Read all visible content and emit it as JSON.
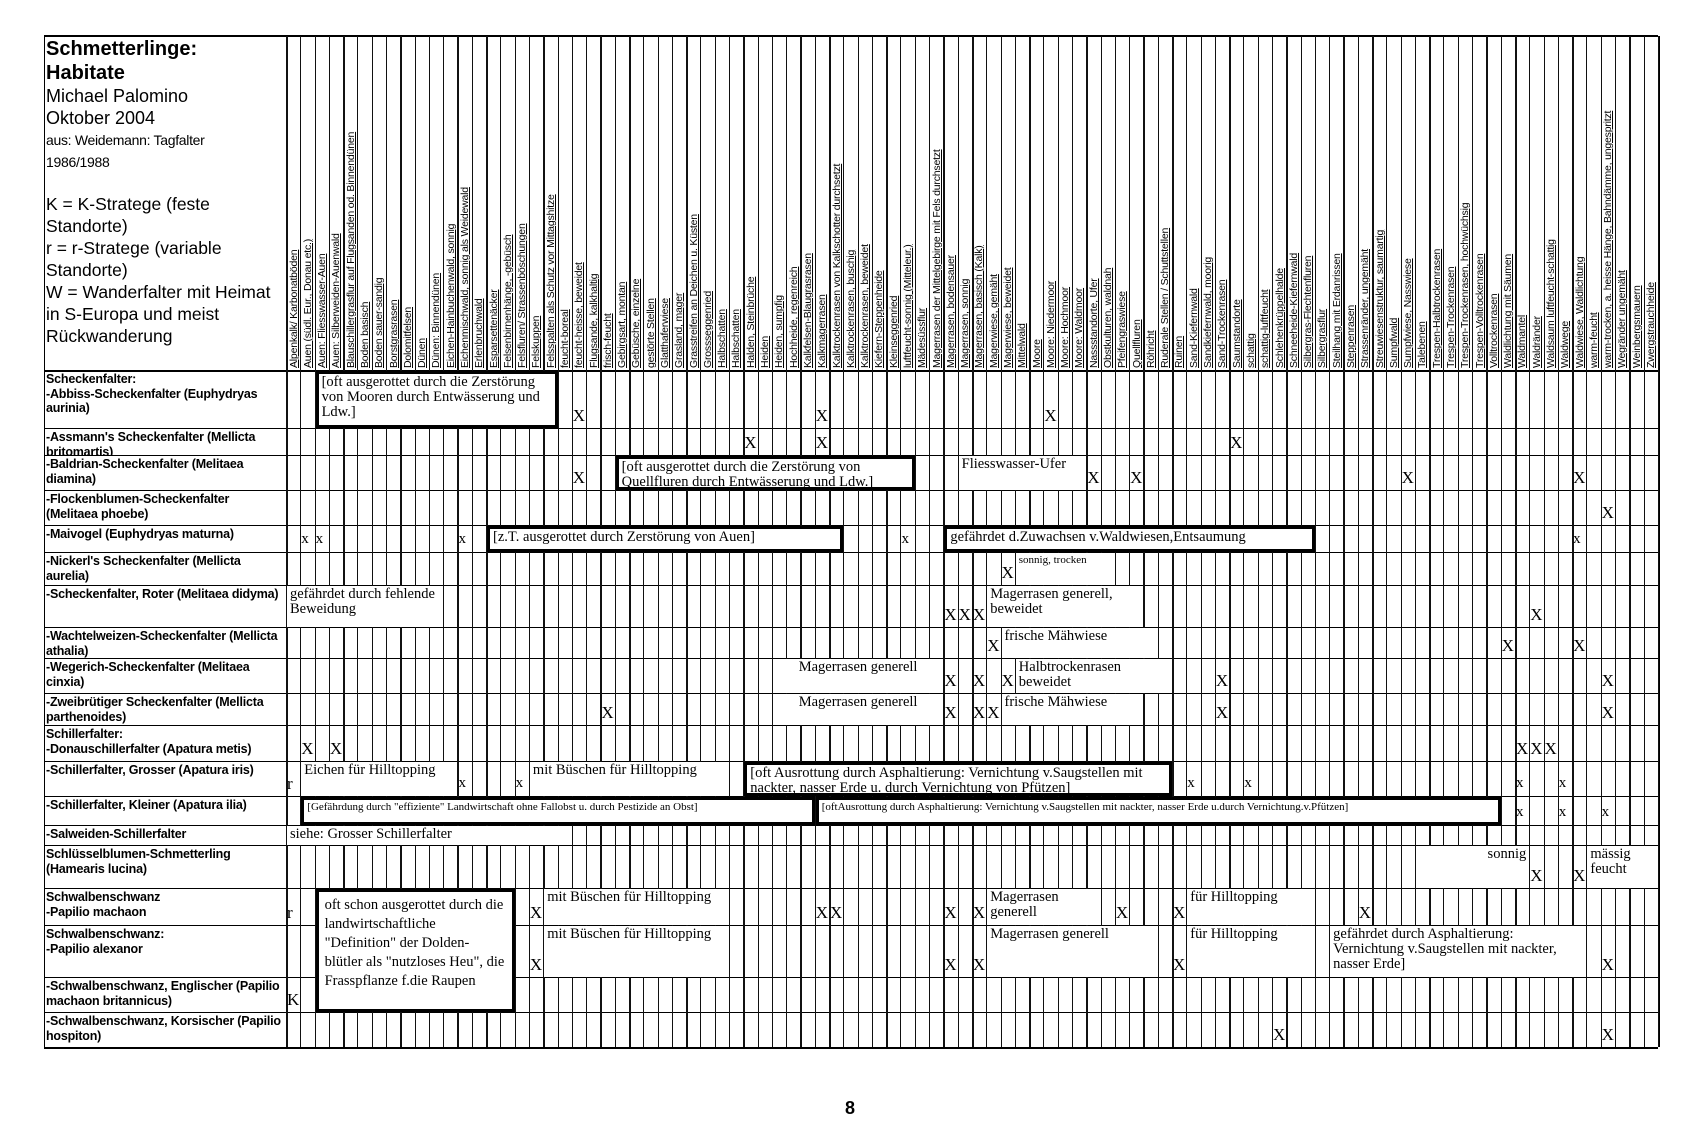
{
  "title": {
    "line1": "Schmetterlinge:",
    "line2": "Habitate",
    "author": "Michael Palomino",
    "date": "Oktober 2004",
    "source": "aus: Weidemann: Tagfalter",
    "source_years": "1986/1988",
    "legend": [
      "K = K-Stratege (feste Standorte)",
      "r = r-Stratege (variable Standorte)",
      "W = Wanderfalter mit Heimat in S-Europa und meist Rückwanderung"
    ]
  },
  "columns": [
    "Alpenkalk/ Karbonatböden",
    "Auen (südl. Eur., Donau etc.)",
    "Auen: Fliesswasser-Auen",
    "Auen: Silberweiden-Auenwald",
    "Blauschillergrasflur auf Flugsanden od. Binnendünen",
    "Boden basisch",
    "Boden sauer-sandig",
    "Borstgrasrasen",
    "Dolomitfelsen",
    "Dünen",
    "Dünen: Binnendünen",
    "Eichen-Hainbuchenwald, sonnig",
    "Eichenmischwald, sonnig als Weidewald",
    "Erlenbruchwald",
    "Esparsettenäcker",
    "Felsenbirnenhänge, -gebüsch",
    "Felsfluren/ Strassenböschungen",
    "Felskuppen",
    "Felsspalten als Schutz vor Mittagshitze",
    "feucht-boreal",
    "feucht-heisse, beweidet",
    "Flugsande, kalkhaltig",
    "frisch-feucht",
    "Gebirgsart, montan",
    "Gebüsche, einzelne",
    "gestörte Stellen",
    "Glatthaferwiese",
    "Grasland, mager",
    "Grasstreifen an Deichen u. Küsten",
    "Grossseggenried",
    "Halbschatten",
    "Halbschatten",
    "Halden, Steinbrüche",
    "Heiden",
    "Heiden, sumpfig",
    "Hochheide, regenreich",
    "Kalkfelsen-Blaugrasrasen",
    "Kalkmagerrasen",
    "Kalktrockenrasen von Kalkschotter durchsetzt",
    "Kalktrockenrasen, buschig",
    "Kalktrockenrasen, beweidet",
    "Kiefern-Steppenheide",
    "Kleinseggenried",
    "luftfeucht-sonnig (Mitteleur.)",
    "Mädesüssflur",
    "Magerrasen der Mittelgebirge mit Fels durchsetzt",
    "Magerrasen, bodensauer",
    "Magerrasen, sonnig",
    "Magerrasen, basisch (Kalk)",
    "Magerwiese, gemäht",
    "Magerwiese, beweidet",
    "Mittelwald",
    "Moore",
    "Moore: Niedermoor",
    "Moore: Hochmoor",
    "Moore: Waldmoor",
    "Nassstandorte, Ufer",
    "Obstkulturen, waldnah",
    "Pfeifengraswiese",
    "Quellfluren",
    "Röhricht",
    "Ruderale Stellen / Schuttstellen",
    "Ruinen",
    "Sand-Kiefernwald",
    "Sandkiefernwald, moorig",
    "Sand-Trockenrasen",
    "Saumstandorte",
    "schattig",
    "schattig-luftfeucht",
    "Schlehenkrüppelhalde",
    "Schneeheide-Kiefernwald",
    "Silbergras-Flechtenfluren",
    "Silbergrasflur",
    "Steilhang mit Erdanrissen",
    "Steppenrasen",
    "Strassenränder, ungemäht",
    "Streuwiesenstruktur, saumartig",
    "Sumpfwald",
    "Sumpfwiese, Nasswiese",
    "Talebenen",
    "Trespen-Halbtrockenrasen",
    "Trespen-Trockenrasen",
    "Trespen-Trockenrasen, hochwüchsig",
    "Trespen-Volltrockenrasen",
    "Volltrockenrasen",
    "Waldlichtung mit Säumen",
    "Waldmantel",
    "Waldränder",
    "Waldsaum luftfeucht-schattig",
    "Waldwege",
    "Waldwiese, Waldlichtung",
    "warm-feucht",
    "warm-trocken, a. heisse Hänge, Bahndämme, ungespritzt",
    "Wegränder ungemäht",
    "Weinbergsmauern",
    "Zwergstrauchheide"
  ],
  "rows": [
    {
      "group": "Scheckenfalter:",
      "label": "-Abbiss-Scheckenfalter (Euphydryas aurinia)",
      "marks": [
        {
          "col": 21,
          "text": "X"
        },
        {
          "col": 38,
          "text": "X"
        },
        {
          "col": 54,
          "text": "X"
        }
      ],
      "notes": [
        {
          "from": 3,
          "to": 19,
          "text": "[oft ausgerottet durch die Zerstörung von Mooren durch Entwässerung und Ldw.]",
          "framed": true
        }
      ]
    },
    {
      "group": "",
      "label": "-Assmann's Scheckenfalter (Mellicta britomartis)",
      "marks": [
        {
          "col": 33,
          "text": "X"
        },
        {
          "col": 38,
          "text": "X"
        },
        {
          "col": 67,
          "text": "X"
        }
      ],
      "notes": []
    },
    {
      "group": "",
      "label": "-Baldrian-Scheckenfalter (Melitaea diamina)",
      "marks": [
        {
          "col": 21,
          "text": "X"
        },
        {
          "col": 57,
          "text": "X"
        },
        {
          "col": 60,
          "text": "X"
        },
        {
          "col": 79,
          "text": "X"
        },
        {
          "col": 91,
          "text": "X"
        }
      ],
      "notes": [
        {
          "from": 24,
          "to": 44,
          "text": "[oft ausgerottet durch die Zerstörung von Quellfluren durch Entwässerung und Ldw.]",
          "framed": true
        },
        {
          "from": 48,
          "to": 56,
          "text": "Fliesswasser-Ufer",
          "framed": false
        }
      ]
    },
    {
      "group": "",
      "label": "-Flockenblumen-Scheckenfalter (Melitaea phoebe)",
      "marks": [
        {
          "col": 93,
          "text": "X"
        }
      ],
      "notes": []
    },
    {
      "group": "",
      "label": "-Maivogel (Euphydryas maturna)",
      "marks": [
        {
          "col": 2,
          "text": "x"
        },
        {
          "col": 3,
          "text": "x"
        },
        {
          "col": 13,
          "text": "x"
        },
        {
          "col": 44,
          "text": "x"
        },
        {
          "col": 91,
          "text": "x"
        }
      ],
      "notes": [
        {
          "from": 15,
          "to": 39,
          "text": "[z.T. ausgerottet durch Zerstörung von Auen]",
          "framed": true
        },
        {
          "from": 47,
          "to": 72,
          "text": "gefährdet d.Zuwachsen v.Waldwiesen,Entsaumung",
          "framed": true
        }
      ]
    },
    {
      "group": "",
      "label": "-Nickerl's Scheckenfalter (Mellicta aurelia)",
      "marks": [
        {
          "col": 51,
          "text": "X"
        }
      ],
      "notes": [
        {
          "from": 52,
          "to": 58,
          "text": "sonnig, trocken",
          "framed": false
        }
      ]
    },
    {
      "group": "",
      "label": "-Scheckenfalter, Roter (Melitaea didyma)",
      "marks": [
        {
          "col": 47,
          "text": "X"
        },
        {
          "col": 48,
          "text": "X"
        },
        {
          "col": 49,
          "text": "X"
        },
        {
          "col": 88,
          "text": "X"
        }
      ],
      "notes": [
        {
          "from": 1,
          "to": 11,
          "text": "gefährdet durch fehlende Beweidung",
          "framed": false
        },
        {
          "from": 50,
          "to": 60,
          "text": "Magerrasen generell, beweidet",
          "framed": false
        }
      ]
    },
    {
      "group": "",
      "label": "-Wachtelweizen-Scheckenfalter (Mellicta athalia)",
      "marks": [
        {
          "col": 50,
          "text": "X"
        },
        {
          "col": 86,
          "text": "X"
        },
        {
          "col": 91,
          "text": "X"
        }
      ],
      "notes": [
        {
          "from": 51,
          "to": 61,
          "text": "frische Mähwiese",
          "framed": false
        }
      ]
    },
    {
      "group": "",
      "label": "-Wegerich-Scheckenfalter (Melitaea cinxia)",
      "marks": [
        {
          "col": 47,
          "text": "X"
        },
        {
          "col": 49,
          "text": "X"
        },
        {
          "col": 51,
          "text": "X"
        },
        {
          "col": 66,
          "text": "X"
        },
        {
          "col": 93,
          "text": "X"
        }
      ],
      "notes": [
        {
          "from": 35,
          "to": 46,
          "text": "Magerrasen generell",
          "framed": false,
          "align": "center"
        },
        {
          "from": 52,
          "to": 62,
          "text": "Halbtrockenrasen beweidet",
          "framed": false
        }
      ]
    },
    {
      "group": "",
      "label": "-Zweibrütiger Scheckenfalter (Mellicta parthenoides)",
      "marks": [
        {
          "col": 23,
          "text": "X"
        },
        {
          "col": 47,
          "text": "X"
        },
        {
          "col": 49,
          "text": "X"
        },
        {
          "col": 50,
          "text": "X"
        },
        {
          "col": 66,
          "text": "X"
        },
        {
          "col": 93,
          "text": "X"
        }
      ],
      "notes": [
        {
          "from": 35,
          "to": 46,
          "text": "Magerrasen generell",
          "framed": false,
          "align": "center"
        },
        {
          "from": 51,
          "to": 60,
          "text": "frische Mähwiese",
          "framed": false
        }
      ]
    },
    {
      "group": "Schillerfalter:",
      "label": "-Donauschillerfalter (Apatura metis)",
      "marks": [
        {
          "col": 2,
          "text": "X"
        },
        {
          "col": 4,
          "text": "X"
        },
        {
          "col": 87,
          "text": "X"
        },
        {
          "col": 88,
          "text": "X"
        },
        {
          "col": 89,
          "text": "X"
        }
      ],
      "notes": []
    },
    {
      "group": "",
      "label": "-Schillerfalter, Grosser (Apatura iris)",
      "marks": [
        {
          "col": 1,
          "text": "r"
        },
        {
          "col": 13,
          "text": "x"
        },
        {
          "col": 17,
          "text": "x"
        },
        {
          "col": 64,
          "text": "x"
        },
        {
          "col": 68,
          "text": "x"
        },
        {
          "col": 87,
          "text": "x"
        },
        {
          "col": 90,
          "text": "x"
        }
      ],
      "notes": [
        {
          "from": 2,
          "to": 12,
          "text": "Eichen für Hilltopping",
          "framed": false
        },
        {
          "from": 18,
          "to": 31,
          "text": "mit Büschen für Hilltopping",
          "framed": false
        },
        {
          "from": 33,
          "to": 62,
          "text": "[oft Ausrottung durch Asphaltierung: Vernichtung v.Saugstellen mit nackter, nasser Erde u. durch Vernichtung von Pfützen]",
          "framed": true
        }
      ]
    },
    {
      "group": "",
      "label": "-Schillerfalter, Kleiner (Apatura ilia)",
      "marks": [
        {
          "col": 87,
          "text": "x"
        },
        {
          "col": 90,
          "text": "x"
        },
        {
          "col": 93,
          "text": "x"
        }
      ],
      "notes": [
        {
          "from": 2,
          "to": 37,
          "text": "[Gefährdung durch \"effiziente\" Landwirtschaft ohne Fallobst u. durch Pestizide an Obst]",
          "framed": true
        },
        {
          "from": 38,
          "to": 85,
          "text": "[oftAusrottung durch Asphaltierung: Vernichtung v.Saugstellen mit nackter, nasser Erde u.durch Vernichtung.v.Pfützen]",
          "framed": true
        }
      ]
    },
    {
      "group": "",
      "label": "-Salweiden-Schillerfalter",
      "marks": [],
      "notes": [
        {
          "from": 1,
          "to": 20,
          "text": "siehe: Grosser Schillerfalter",
          "framed": false
        }
      ]
    },
    {
      "group": "",
      "label": "Schlüsselblumen-Schmetterling (Hamearis lucina)",
      "marks": [
        {
          "col": 88,
          "text": "X"
        },
        {
          "col": 91,
          "text": "X"
        }
      ],
      "notes": [
        {
          "from": 80,
          "to": 87,
          "text": "sonnig",
          "framed": false,
          "align": "right"
        },
        {
          "from": 92,
          "to": 96,
          "text": "mässig feucht",
          "framed": false
        }
      ]
    },
    {
      "group": "Schwalbenschwanz",
      "label": "-Papilio machaon",
      "marks": [
        {
          "col": 1,
          "text": "r"
        },
        {
          "col": 18,
          "text": "X"
        },
        {
          "col": 38,
          "text": "X"
        },
        {
          "col": 39,
          "text": "X"
        },
        {
          "col": 47,
          "text": "X"
        },
        {
          "col": 49,
          "text": "X"
        },
        {
          "col": 59,
          "text": "X"
        },
        {
          "col": 63,
          "text": "X"
        },
        {
          "col": 76,
          "text": "X"
        }
      ],
      "notes": [
        {
          "from": 3,
          "to": 16,
          "rows": 3,
          "text": "oft schon ausgerottet durch die landwirtschaftliche \"Definition\" der Dolden-blütler als \"nutzloses Heu\", die Frasspflanze f.die Raupen",
          "framed": true
        },
        {
          "from": 19,
          "to": 31,
          "text": "mit Büschen für Hilltopping",
          "framed": false
        },
        {
          "from": 50,
          "to": 57,
          "text": "Magerrasen generell",
          "framed": false
        },
        {
          "from": 64,
          "to": 72,
          "text": "für Hilltopping",
          "framed": false
        }
      ]
    },
    {
      "group": "Schwalbenschwanz:",
      "label": "-Papilio alexanor",
      "marks": [
        {
          "col": 18,
          "text": "X"
        },
        {
          "col": 47,
          "text": "X"
        },
        {
          "col": 49,
          "text": "X"
        },
        {
          "col": 63,
          "text": "X"
        },
        {
          "col": 93,
          "text": "X"
        }
      ],
      "notes": [
        {
          "from": 19,
          "to": 31,
          "text": "mit Büschen für Hilltopping",
          "framed": false
        },
        {
          "from": 50,
          "to": 61,
          "text": "Magerrasen generell",
          "framed": false
        },
        {
          "from": 64,
          "to": 72,
          "text": "für Hilltopping",
          "framed": false
        },
        {
          "from": 74,
          "to": 91,
          "text": "gefährdet durch Asphaltierung: Vernichtung v.Saugstellen mit nackter, nasser Erde]",
          "framed": false
        }
      ]
    },
    {
      "group": "",
      "label": "-Schwalbenschwanz, Englischer (Papilio machaon britannicus)",
      "marks": [
        {
          "col": 1,
          "text": "K"
        }
      ],
      "notes": []
    },
    {
      "group": "",
      "label": "-Schwalbenschwanz, Korsischer (Papilio hospiton)",
      "marks": [
        {
          "col": 70,
          "text": "X"
        },
        {
          "col": 93,
          "text": "X"
        }
      ],
      "notes": []
    }
  ],
  "page_number": "8"
}
